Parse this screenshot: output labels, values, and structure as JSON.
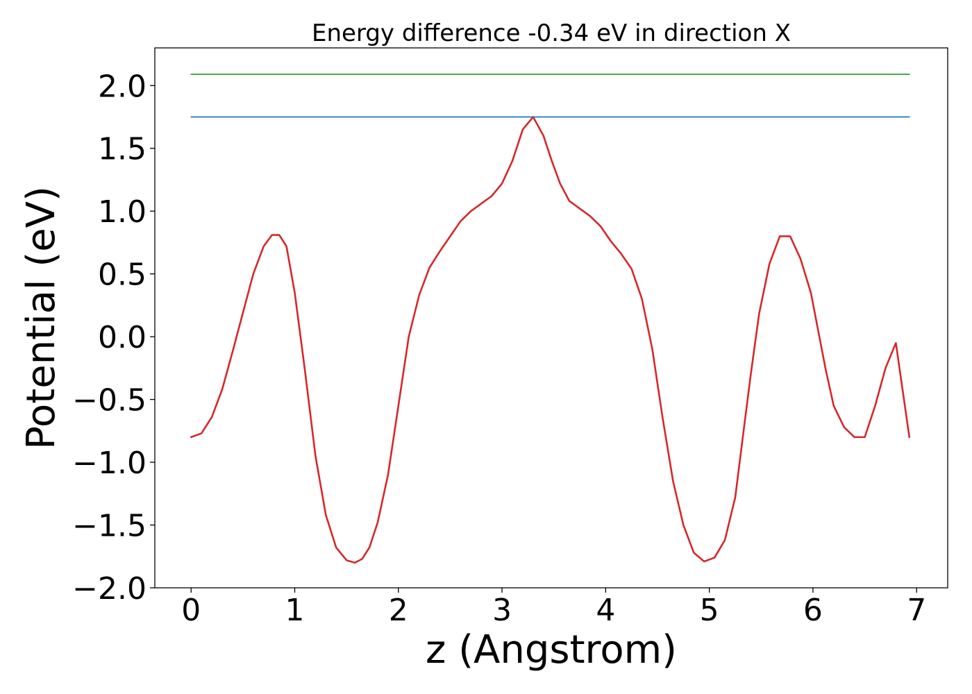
{
  "chart_data": {
    "type": "line",
    "title": "Energy difference -0.34 eV in direction X",
    "xlabel": "z (Angstrom)",
    "ylabel": "Potential (eV)",
    "xlim": [
      -0.35,
      7.3
    ],
    "ylim": [
      -2.0,
      2.3
    ],
    "xticks": [
      0,
      1,
      2,
      3,
      4,
      5,
      6,
      7
    ],
    "xtick_labels": [
      "0",
      "1",
      "2",
      "3",
      "4",
      "5",
      "6",
      "7"
    ],
    "yticks": [
      -2.0,
      -1.5,
      -1.0,
      -0.5,
      0.0,
      0.5,
      1.0,
      1.5,
      2.0
    ],
    "ytick_labels": [
      "−2.0",
      "−1.5",
      "−1.0",
      "−0.5",
      "0.0",
      "0.5",
      "1.0",
      "1.5",
      "2.0"
    ],
    "grid": false,
    "legend": "none",
    "series": [
      {
        "color": "#d62728",
        "x": [
          0.0,
          0.1,
          0.2,
          0.3,
          0.4,
          0.5,
          0.6,
          0.7,
          0.78,
          0.85,
          0.92,
          1.0,
          1.1,
          1.2,
          1.3,
          1.4,
          1.5,
          1.58,
          1.65,
          1.72,
          1.8,
          1.9,
          2.0,
          2.1,
          2.2,
          2.3,
          2.4,
          2.5,
          2.6,
          2.7,
          2.8,
          2.9,
          3.0,
          3.1,
          3.2,
          3.3,
          3.4,
          3.48,
          3.56,
          3.65,
          3.75,
          3.85,
          3.95,
          4.05,
          4.15,
          4.25,
          4.35,
          4.45,
          4.55,
          4.65,
          4.75,
          4.85,
          4.95,
          5.05,
          5.15,
          5.25,
          5.32,
          5.4,
          5.48,
          5.58,
          5.68,
          5.78,
          5.88,
          5.98,
          6.05,
          6.12,
          6.2,
          6.3,
          6.4,
          6.5,
          6.6,
          6.7,
          6.8,
          6.93
        ],
        "y": [
          -0.8,
          -0.77,
          -0.64,
          -0.42,
          -0.12,
          0.19,
          0.5,
          0.72,
          0.81,
          0.81,
          0.72,
          0.35,
          -0.28,
          -0.95,
          -1.42,
          -1.68,
          -1.78,
          -1.8,
          -1.77,
          -1.68,
          -1.48,
          -1.1,
          -0.55,
          0.0,
          0.33,
          0.55,
          0.68,
          0.8,
          0.92,
          1.0,
          1.06,
          1.12,
          1.22,
          1.4,
          1.65,
          1.75,
          1.6,
          1.4,
          1.22,
          1.08,
          1.02,
          0.96,
          0.88,
          0.76,
          0.66,
          0.54,
          0.3,
          -0.1,
          -0.65,
          -1.15,
          -1.5,
          -1.72,
          -1.79,
          -1.76,
          -1.62,
          -1.28,
          -0.82,
          -0.3,
          0.18,
          0.58,
          0.8,
          0.8,
          0.62,
          0.35,
          0.05,
          -0.25,
          -0.55,
          -0.72,
          -0.8,
          -0.8,
          -0.55,
          -0.25,
          -0.05,
          -0.8
        ]
      },
      {
        "color": "#1f77b4",
        "x": [
          0.0,
          6.93
        ],
        "y": [
          1.75,
          1.75
        ]
      },
      {
        "color": "#2ca02c",
        "x": [
          0.0,
          6.93
        ],
        "y": [
          2.09,
          2.09
        ]
      }
    ]
  }
}
